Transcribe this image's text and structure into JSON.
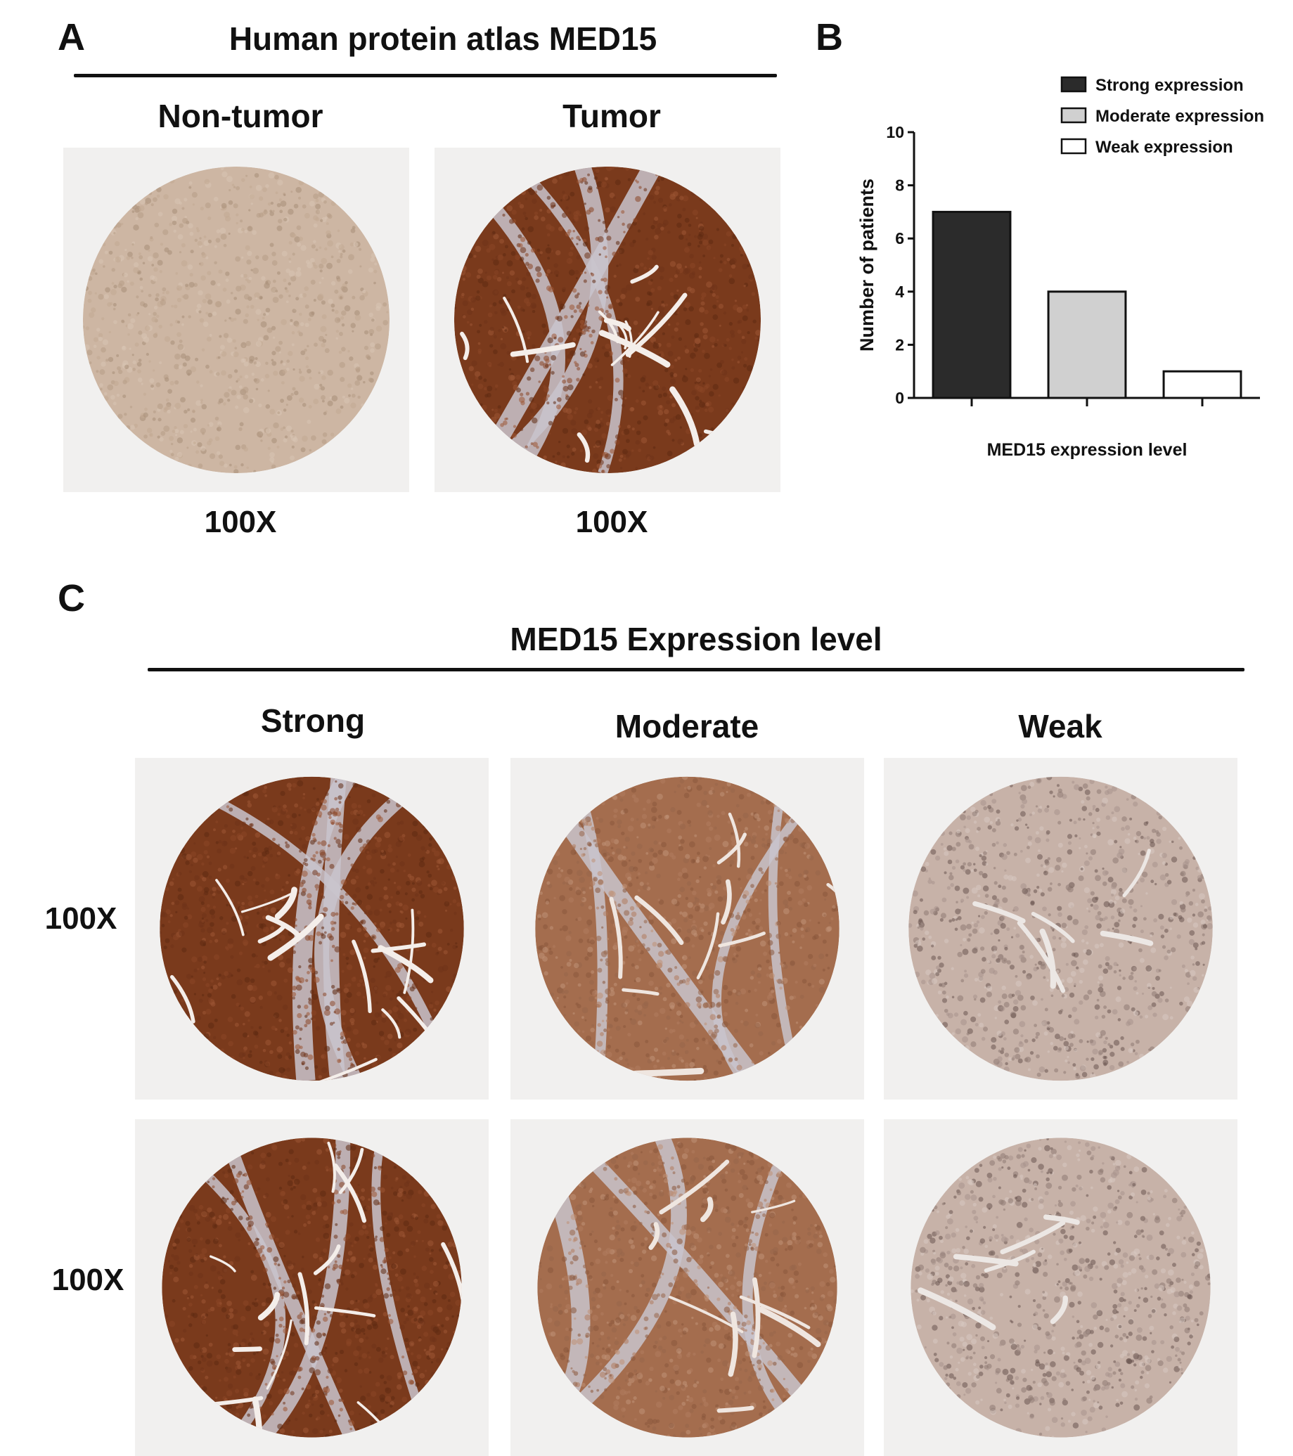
{
  "panel_a": {
    "letter": "A",
    "title": "Human protein atlas  MED15",
    "columns": [
      "Non-tumor",
      "Tumor"
    ],
    "magnification": [
      "100X",
      "100X"
    ],
    "images": [
      {
        "label": "Non-tumor",
        "stain": "weak-uniform"
      },
      {
        "label": "Tumor",
        "stain": "strong"
      }
    ]
  },
  "panel_b": {
    "letter": "B"
  },
  "chart_data": {
    "type": "bar",
    "categories": [
      "Strong expression",
      "Moderate expression",
      "Weak expression"
    ],
    "values": [
      7,
      4,
      1
    ],
    "colors": [
      "#2b2b2b",
      "#d0d0d0",
      "#ffffff"
    ],
    "xlabel": "MED15 expression level",
    "ylabel": "Number of patients",
    "ylim": [
      0,
      10
    ],
    "yticks": [
      0,
      2,
      4,
      6,
      8,
      10
    ],
    "legend": [
      "Strong expression",
      "Moderate expression",
      "Weak expression"
    ],
    "legend_position": "top-right",
    "grid": false
  },
  "panel_c": {
    "letter": "C",
    "title": "MED15 Expression level",
    "columns": [
      "Strong",
      "Moderate",
      "Weak"
    ],
    "row_labels": [
      "100X",
      "100X"
    ],
    "images": [
      {
        "row": 1,
        "column": "Strong",
        "stain": "strong"
      },
      {
        "row": 1,
        "column": "Moderate",
        "stain": "moderate"
      },
      {
        "row": 1,
        "column": "Weak",
        "stain": "weak"
      },
      {
        "row": 2,
        "column": "Strong",
        "stain": "strong"
      },
      {
        "row": 2,
        "column": "Moderate",
        "stain": "moderate"
      },
      {
        "row": 2,
        "column": "Weak",
        "stain": "weak"
      }
    ]
  },
  "colors": {
    "strong_stain": "#7a3a1c",
    "moderate_stain": "#a46d4e",
    "weak_stain": "#c7b2a8",
    "stroma": "#c9c4cc",
    "tile_background": "#f1f0ef"
  }
}
